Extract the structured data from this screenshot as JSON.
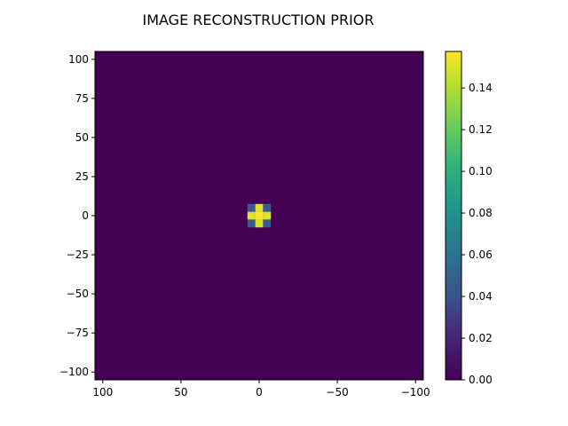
{
  "chart_data": {
    "type": "heatmap",
    "title": "IMAGE RECONSTRUCTION PRIOR",
    "xlabel": "",
    "ylabel": "",
    "xlim": [
      105,
      -105
    ],
    "ylim": [
      -105,
      105
    ],
    "x_ticks": [
      100,
      50,
      0,
      -50,
      -100
    ],
    "x_tick_labels": [
      "100",
      "50",
      "0",
      "−50",
      "−100"
    ],
    "y_ticks": [
      100,
      75,
      50,
      25,
      0,
      -25,
      -50,
      -75,
      -100
    ],
    "y_tick_labels": [
      "100",
      "75",
      "50",
      "25",
      "0",
      "−25",
      "−50",
      "−75",
      "−100"
    ],
    "background_value": 0.0,
    "grid": false,
    "cells": [
      {
        "x": 0,
        "y": 0,
        "value": 0.157
      },
      {
        "x": 0,
        "y": 5,
        "value": 0.15
      },
      {
        "x": 0,
        "y": -5,
        "value": 0.15
      },
      {
        "x": 5,
        "y": 0,
        "value": 0.15
      },
      {
        "x": -5,
        "y": 0,
        "value": 0.15
      },
      {
        "x": 5,
        "y": 5,
        "value": 0.045
      },
      {
        "x": -5,
        "y": 5,
        "value": 0.045
      },
      {
        "x": 5,
        "y": -5,
        "value": 0.045
      },
      {
        "x": -5,
        "y": -5,
        "value": 0.045
      }
    ],
    "cell_size": 5,
    "colorbar": {
      "colormap": "viridis",
      "range": [
        0,
        0.1575
      ],
      "ticks": [
        0.0,
        0.02,
        0.04,
        0.06,
        0.08,
        0.1,
        0.12,
        0.14
      ],
      "tick_labels": [
        "0.00",
        "0.02",
        "0.04",
        "0.06",
        "0.08",
        "0.10",
        "0.12",
        "0.14"
      ]
    },
    "colors": {
      "low": "#440154",
      "high": "#fde725"
    }
  }
}
